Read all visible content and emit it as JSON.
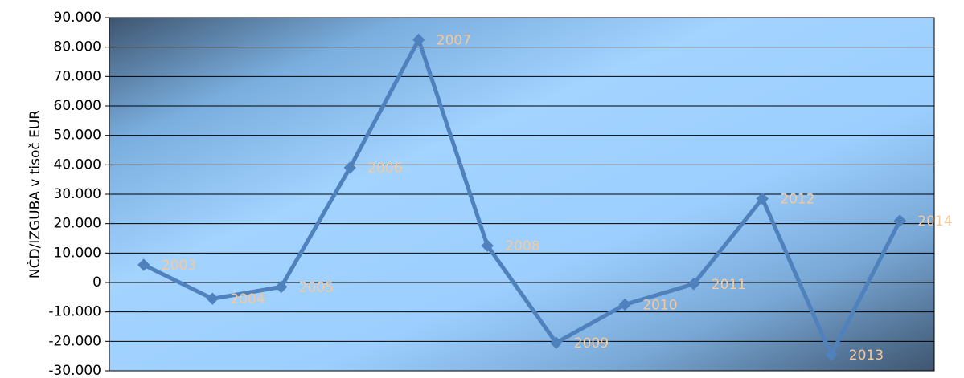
{
  "chart_data": {
    "type": "line",
    "title": "",
    "xlabel": "",
    "ylabel": "NČD/IZGUBA v tisoč EUR",
    "ylim": [
      -30000,
      90000
    ],
    "y_ticks": [
      "90.000",
      "80.000",
      "70.000",
      "60.000",
      "50.000",
      "40.000",
      "30.000",
      "20.000",
      "10.000",
      "0",
      "-10.000",
      "-20.000",
      "-30.000"
    ],
    "categories": [
      "2003",
      "2004",
      "2005",
      "2006",
      "2007",
      "2008",
      "2009",
      "2010",
      "2011",
      "2012",
      "2013",
      "2014"
    ],
    "series": [
      {
        "values": [
          6000,
          -5500,
          -1500,
          39000,
          82500,
          12500,
          -20500,
          -7500,
          -500,
          28500,
          -24500,
          21000
        ]
      }
    ],
    "grid": true,
    "legend": "none",
    "colors": {
      "line": "#4f81bd",
      "data_label": "#f6c89a",
      "plot_light": "#9ccfff",
      "plot_dark": "#3e5570"
    }
  }
}
